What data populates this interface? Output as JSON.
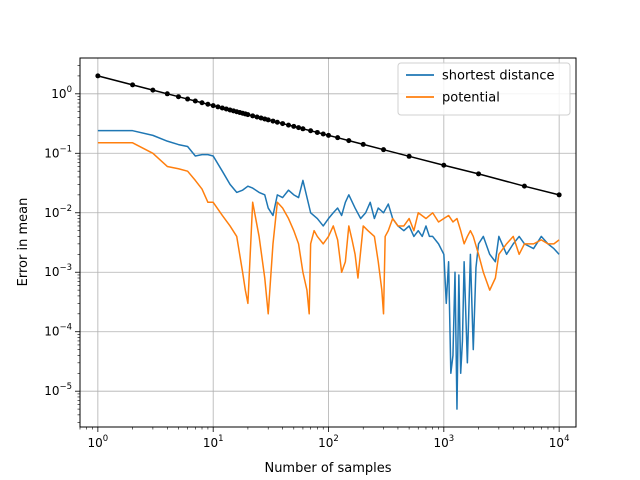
{
  "chart_data": {
    "type": "line",
    "xlabel": "Number of samples",
    "ylabel": "Error in mean",
    "x_scale": "log",
    "y_scale": "log",
    "xlim": [
      0.7,
      14000
    ],
    "ylim": [
      2.5e-06,
      4
    ],
    "x_ticks": [
      {
        "value": 1,
        "base": "10",
        "exp": "0"
      },
      {
        "value": 10,
        "base": "10",
        "exp": "1"
      },
      {
        "value": 100,
        "base": "10",
        "exp": "2"
      },
      {
        "value": 1000,
        "base": "10",
        "exp": "3"
      },
      {
        "value": 10000,
        "base": "10",
        "exp": "4"
      }
    ],
    "y_ticks": [
      {
        "value": 1e-05,
        "base": "10",
        "exp": "−5"
      },
      {
        "value": 0.0001,
        "base": "10",
        "exp": "−4"
      },
      {
        "value": 0.001,
        "base": "10",
        "exp": "−3"
      },
      {
        "value": 0.01,
        "base": "10",
        "exp": "−2"
      },
      {
        "value": 0.1,
        "base": "10",
        "exp": "−1"
      },
      {
        "value": 1,
        "base": "10",
        "exp": "0"
      }
    ],
    "grid": true,
    "legend_position": "top-right",
    "series": [
      {
        "name": "shortest distance",
        "color": "#1f77b4",
        "x": [
          1,
          2,
          3,
          4,
          5,
          6,
          7,
          8,
          9,
          10,
          12,
          14,
          16,
          18,
          20,
          22,
          25,
          28,
          30,
          33,
          36,
          40,
          45,
          50,
          55,
          60,
          70,
          80,
          90,
          100,
          110,
          120,
          130,
          140,
          150,
          170,
          190,
          210,
          230,
          250,
          270,
          300,
          330,
          360,
          400,
          450,
          500,
          550,
          600,
          650,
          700,
          750,
          800,
          900,
          1000,
          1050,
          1100,
          1150,
          1200,
          1250,
          1300,
          1350,
          1400,
          1450,
          1500,
          1600,
          1700,
          1800,
          1900,
          2000,
          2200,
          2500,
          2800,
          3000,
          3500,
          4000,
          4500,
          5000,
          6000,
          7000,
          8000,
          9000,
          10000
        ],
        "y": [
          0.24,
          0.24,
          0.2,
          0.16,
          0.14,
          0.13,
          0.09,
          0.095,
          0.095,
          0.09,
          0.05,
          0.03,
          0.022,
          0.024,
          0.028,
          0.026,
          0.022,
          0.02,
          0.012,
          0.009,
          0.02,
          0.018,
          0.024,
          0.02,
          0.018,
          0.035,
          0.01,
          0.008,
          0.006,
          0.008,
          0.01,
          0.012,
          0.009,
          0.015,
          0.02,
          0.012,
          0.008,
          0.01,
          0.015,
          0.008,
          0.012,
          0.01,
          0.014,
          0.008,
          0.006,
          0.005,
          0.006,
          0.004,
          0.005,
          0.004,
          0.006,
          0.004,
          0.004,
          0.003,
          0.002,
          0.0003,
          0.0015,
          2e-05,
          4e-05,
          0.001,
          5e-06,
          0.0009,
          2e-05,
          7e-05,
          0.0015,
          3e-05,
          0.002,
          5e-05,
          0.0012,
          0.003,
          0.004,
          0.002,
          0.0015,
          0.004,
          0.002,
          0.003,
          0.004,
          0.003,
          0.0025,
          0.004,
          0.003,
          0.0025,
          0.002
        ]
      },
      {
        "name": "potential",
        "color": "#ff7f0e",
        "x": [
          1,
          2,
          3,
          4,
          5,
          6,
          7,
          8,
          9,
          10,
          12,
          14,
          16,
          18,
          19,
          20,
          22,
          25,
          28,
          30,
          33,
          36,
          40,
          45,
          50,
          55,
          60,
          65,
          68,
          70,
          75,
          80,
          90,
          100,
          110,
          120,
          130,
          140,
          150,
          160,
          170,
          180,
          200,
          220,
          250,
          270,
          290,
          300,
          310,
          330,
          360,
          400,
          450,
          500,
          550,
          600,
          700,
          800,
          900,
          1000,
          1100,
          1200,
          1300,
          1400,
          1500,
          1600,
          1700,
          1800,
          2000,
          2200,
          2500,
          2800,
          3000,
          3500,
          4000,
          4500,
          5000,
          6000,
          7000,
          8000,
          9000,
          10000
        ],
        "y": [
          0.15,
          0.15,
          0.1,
          0.06,
          0.055,
          0.05,
          0.035,
          0.025,
          0.015,
          0.015,
          0.009,
          0.006,
          0.004,
          0.001,
          0.0005,
          0.0003,
          0.015,
          0.004,
          0.0008,
          0.0002,
          0.003,
          0.015,
          0.012,
          0.008,
          0.005,
          0.003,
          0.001,
          0.0005,
          0.0002,
          0.003,
          0.005,
          0.004,
          0.003,
          0.004,
          0.006,
          0.0035,
          0.001,
          0.0015,
          0.006,
          0.0035,
          0.002,
          0.0008,
          0.006,
          0.005,
          0.004,
          0.0015,
          0.0005,
          0.0002,
          0.004,
          0.005,
          0.008,
          0.006,
          0.006,
          0.008,
          0.005,
          0.01,
          0.008,
          0.01,
          0.007,
          0.008,
          0.009,
          0.007,
          0.008,
          0.005,
          0.003,
          0.004,
          0.005,
          0.004,
          0.002,
          0.001,
          0.0005,
          0.0008,
          0.002,
          0.003,
          0.004,
          0.002,
          0.003,
          0.003,
          0.0035,
          0.003,
          0.003,
          0.0035
        ]
      },
      {
        "name": "",
        "color": "#000000",
        "markers": true,
        "x": [
          1,
          2,
          3,
          4,
          5,
          6,
          7,
          8,
          9,
          10,
          11,
          12,
          13,
          14,
          15,
          16,
          17,
          18,
          19,
          20,
          22,
          24,
          26,
          28,
          30,
          33,
          36,
          40,
          45,
          50,
          55,
          60,
          70,
          80,
          90,
          100,
          120,
          150,
          200,
          300,
          500,
          1000,
          2000,
          5000,
          10000
        ],
        "y": [
          2.0,
          1.414,
          1.155,
          1.0,
          0.894,
          0.816,
          0.756,
          0.707,
          0.667,
          0.632,
          0.603,
          0.577,
          0.555,
          0.535,
          0.516,
          0.5,
          0.485,
          0.471,
          0.459,
          0.447,
          0.426,
          0.408,
          0.392,
          0.378,
          0.365,
          0.348,
          0.333,
          0.316,
          0.298,
          0.283,
          0.27,
          0.258,
          0.239,
          0.224,
          0.211,
          0.2,
          0.183,
          0.163,
          0.141,
          0.115,
          0.089,
          0.063,
          0.045,
          0.028,
          0.02
        ]
      }
    ]
  }
}
